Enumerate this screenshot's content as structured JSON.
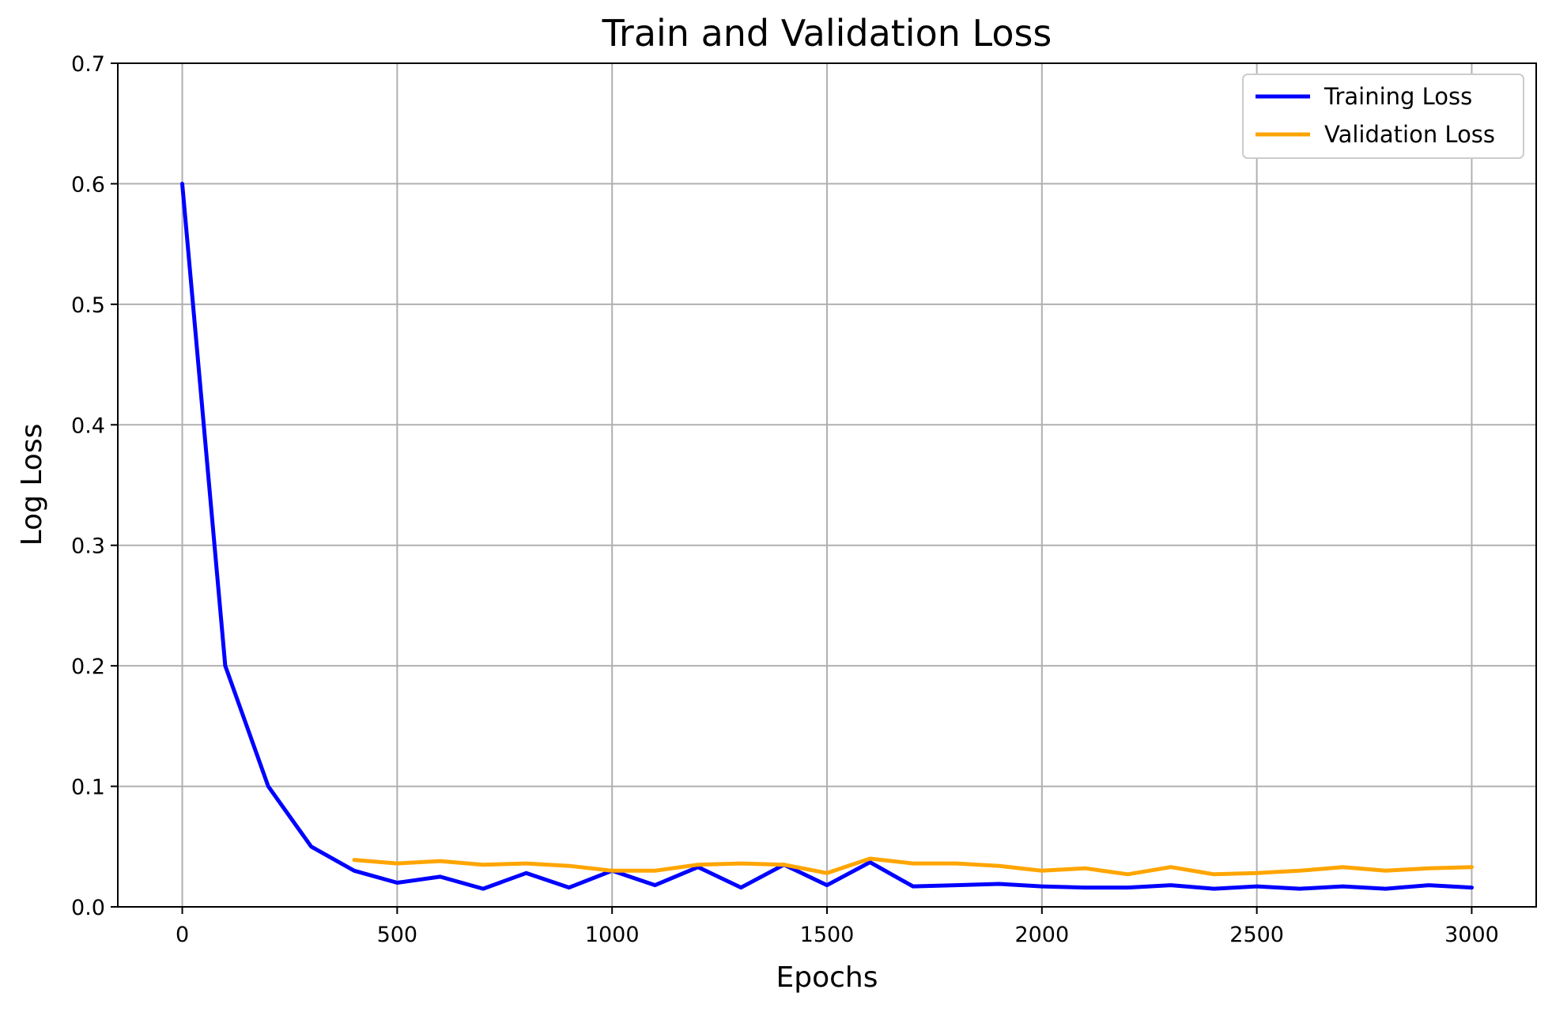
{
  "chart_data": {
    "type": "line",
    "title": "Train and Validation Loss",
    "xlabel": "Epochs",
    "ylabel": "Log Loss",
    "xlim": [
      -150,
      3150
    ],
    "ylim": [
      0,
      0.7
    ],
    "xticks": [
      0,
      500,
      1000,
      1500,
      2000,
      2500,
      3000
    ],
    "xtick_labels": [
      "0",
      "500",
      "1000",
      "1500",
      "2000",
      "2500",
      "3000"
    ],
    "yticks": [
      0,
      0.1,
      0.2,
      0.3,
      0.4,
      0.5,
      0.6,
      0.7
    ],
    "ytick_labels": [
      "0.0",
      "0.1",
      "0.2",
      "0.3",
      "0.4",
      "0.5",
      "0.6",
      "0.7"
    ],
    "grid": true,
    "legend_position": "top-right",
    "series": [
      {
        "name": "Training Loss",
        "color": "#0000ff",
        "x": [
          0,
          100,
          200,
          300,
          400,
          500,
          600,
          700,
          800,
          900,
          1000,
          1100,
          1200,
          1300,
          1400,
          1500,
          1600,
          1700,
          1800,
          1900,
          2000,
          2100,
          2200,
          2300,
          2400,
          2500,
          2600,
          2700,
          2800,
          2900,
          3000
        ],
        "y": [
          0.6,
          0.2,
          0.1,
          0.05,
          0.03,
          0.02,
          0.025,
          0.015,
          0.028,
          0.016,
          0.03,
          0.018,
          0.033,
          0.016,
          0.035,
          0.018,
          0.037,
          0.017,
          0.018,
          0.019,
          0.017,
          0.016,
          0.016,
          0.018,
          0.015,
          0.017,
          0.015,
          0.017,
          0.015,
          0.018,
          0.016
        ]
      },
      {
        "name": "Validation Loss",
        "color": "#ffa500",
        "x": [
          400,
          500,
          600,
          700,
          800,
          900,
          1000,
          1100,
          1200,
          1300,
          1400,
          1500,
          1600,
          1700,
          1800,
          1900,
          2000,
          2100,
          2200,
          2300,
          2400,
          2500,
          2600,
          2700,
          2800,
          2900,
          3000
        ],
        "y": [
          0.039,
          0.036,
          0.038,
          0.035,
          0.036,
          0.034,
          0.03,
          0.03,
          0.035,
          0.036,
          0.035,
          0.028,
          0.04,
          0.036,
          0.036,
          0.034,
          0.03,
          0.032,
          0.027,
          0.033,
          0.027,
          0.028,
          0.03,
          0.033,
          0.03,
          0.032,
          0.033
        ]
      }
    ]
  }
}
